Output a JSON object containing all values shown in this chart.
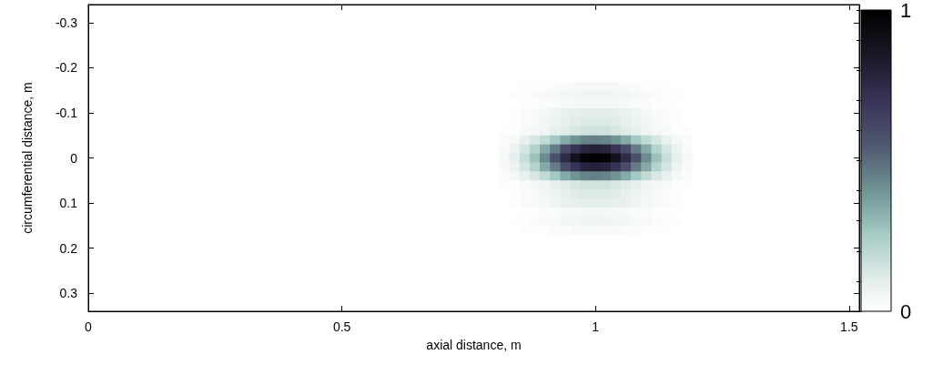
{
  "chart_data": {
    "type": "heatmap",
    "xlabel": "axial distance, m",
    "ylabel": "circumferential distance, m",
    "x": [
      0.82,
      0.84,
      0.86,
      0.88,
      0.9,
      0.92,
      0.94,
      0.96,
      0.98,
      1,
      1.02,
      1.04,
      1.06,
      1.08,
      1.1,
      1.12,
      1.14,
      1.16,
      1.18
    ],
    "y": [
      -0.16,
      -0.14,
      -0.12,
      -0.1,
      -0.08,
      -0.06,
      -0.04,
      -0.02,
      0,
      0.02,
      0.04,
      0.06,
      0.08,
      0.1,
      0.12,
      0.14,
      0.16
    ],
    "cells": [
      [
        0,
        0,
        0.01,
        0.01,
        0.01,
        0.02,
        0.02,
        0.03,
        0.03,
        0.03,
        0.03,
        0.03,
        0.02,
        0.02,
        0.01,
        0.01,
        0.01,
        0,
        0
      ],
      [
        0,
        0.01,
        0.01,
        0.02,
        0.03,
        0.03,
        0.05,
        0.05,
        0.06,
        0.06,
        0.06,
        0.05,
        0.05,
        0.03,
        0.03,
        0.02,
        0.01,
        0.01,
        0
      ],
      [
        0,
        0,
        0.01,
        0.01,
        0.02,
        0.02,
        0.03,
        0.04,
        0.04,
        0.04,
        0.04,
        0.04,
        0.03,
        0.02,
        0.02,
        0.01,
        0.01,
        0,
        0
      ],
      [
        0,
        0.01,
        0.02,
        0.03,
        0.04,
        0.06,
        0.08,
        0.09,
        0.1,
        0.1,
        0.1,
        0.09,
        0.08,
        0.06,
        0.04,
        0.03,
        0.02,
        0.01,
        0
      ],
      [
        0,
        0.01,
        0.02,
        0.03,
        0.05,
        0.07,
        0.09,
        0.11,
        0.12,
        0.12,
        0.12,
        0.11,
        0.09,
        0.07,
        0.05,
        0.03,
        0.02,
        0.01,
        0
      ],
      [
        0.01,
        0.01,
        0.03,
        0.04,
        0.06,
        0.09,
        0.11,
        0.13,
        0.15,
        0.15,
        0.15,
        0.13,
        0.11,
        0.09,
        0.06,
        0.04,
        0.03,
        0.01,
        0.01
      ],
      [
        0.02,
        0.04,
        0.08,
        0.13,
        0.19,
        0.26,
        0.34,
        0.4,
        0.44,
        0.45,
        0.44,
        0.4,
        0.34,
        0.26,
        0.19,
        0.13,
        0.08,
        0.04,
        0.02
      ],
      [
        0.03,
        0.07,
        0.14,
        0.22,
        0.34,
        0.46,
        0.6,
        0.7,
        0.78,
        0.8,
        0.78,
        0.7,
        0.6,
        0.46,
        0.34,
        0.22,
        0.14,
        0.07,
        0.03
      ],
      [
        0.04,
        0.09,
        0.17,
        0.28,
        0.42,
        0.58,
        0.75,
        0.88,
        0.97,
        1,
        0.97,
        0.88,
        0.75,
        0.58,
        0.42,
        0.28,
        0.17,
        0.09,
        0.04
      ],
      [
        0.03,
        0.07,
        0.14,
        0.22,
        0.34,
        0.46,
        0.6,
        0.7,
        0.78,
        0.8,
        0.78,
        0.7,
        0.6,
        0.46,
        0.34,
        0.22,
        0.14,
        0.07,
        0.03
      ],
      [
        0.02,
        0.04,
        0.08,
        0.13,
        0.19,
        0.26,
        0.34,
        0.4,
        0.44,
        0.45,
        0.44,
        0.4,
        0.34,
        0.26,
        0.19,
        0.13,
        0.08,
        0.04,
        0.02
      ],
      [
        0.01,
        0.01,
        0.03,
        0.04,
        0.06,
        0.09,
        0.11,
        0.13,
        0.15,
        0.15,
        0.15,
        0.13,
        0.11,
        0.09,
        0.06,
        0.04,
        0.03,
        0.01,
        0.01
      ],
      [
        0,
        0.01,
        0.02,
        0.03,
        0.05,
        0.07,
        0.09,
        0.11,
        0.12,
        0.12,
        0.12,
        0.11,
        0.09,
        0.07,
        0.05,
        0.03,
        0.02,
        0.01,
        0
      ],
      [
        0,
        0.01,
        0.02,
        0.03,
        0.04,
        0.06,
        0.08,
        0.09,
        0.1,
        0.1,
        0.1,
        0.09,
        0.08,
        0.06,
        0.04,
        0.03,
        0.02,
        0.01,
        0
      ],
      [
        0,
        0,
        0.01,
        0.01,
        0.02,
        0.02,
        0.03,
        0.04,
        0.04,
        0.04,
        0.04,
        0.04,
        0.03,
        0.02,
        0.02,
        0.01,
        0.01,
        0,
        0
      ],
      [
        0,
        0.01,
        0.01,
        0.02,
        0.03,
        0.03,
        0.05,
        0.05,
        0.06,
        0.06,
        0.06,
        0.05,
        0.05,
        0.03,
        0.03,
        0.02,
        0.01,
        0.01,
        0
      ],
      [
        0,
        0,
        0.01,
        0.01,
        0.01,
        0.02,
        0.02,
        0.03,
        0.03,
        0.03,
        0.03,
        0.03,
        0.02,
        0.02,
        0.01,
        0.01,
        0.01,
        0,
        0
      ]
    ],
    "xlim": [
      0,
      1.52
    ],
    "xticks": [
      0,
      0.5,
      1,
      1.5
    ],
    "ylim": [
      0.34,
      -0.34
    ],
    "yticks": [
      -0.3,
      -0.2,
      -0.1,
      0,
      0.1,
      0.2,
      0.3
    ],
    "clim": [
      0,
      1
    ],
    "cticks": [
      0,
      {
        "value": 0.1,
        "label": null
      },
      {
        "value": 0.2,
        "label": null
      },
      {
        "value": 0.3,
        "label": null
      },
      {
        "value": 0.4,
        "label": null
      },
      {
        "value": 0.5,
        "label": null
      },
      {
        "value": 0.6,
        "label": null
      },
      {
        "value": 0.7,
        "label": null
      },
      {
        "value": 0.8,
        "label": null
      },
      {
        "value": 0.9,
        "label": null
      },
      1
    ]
  }
}
